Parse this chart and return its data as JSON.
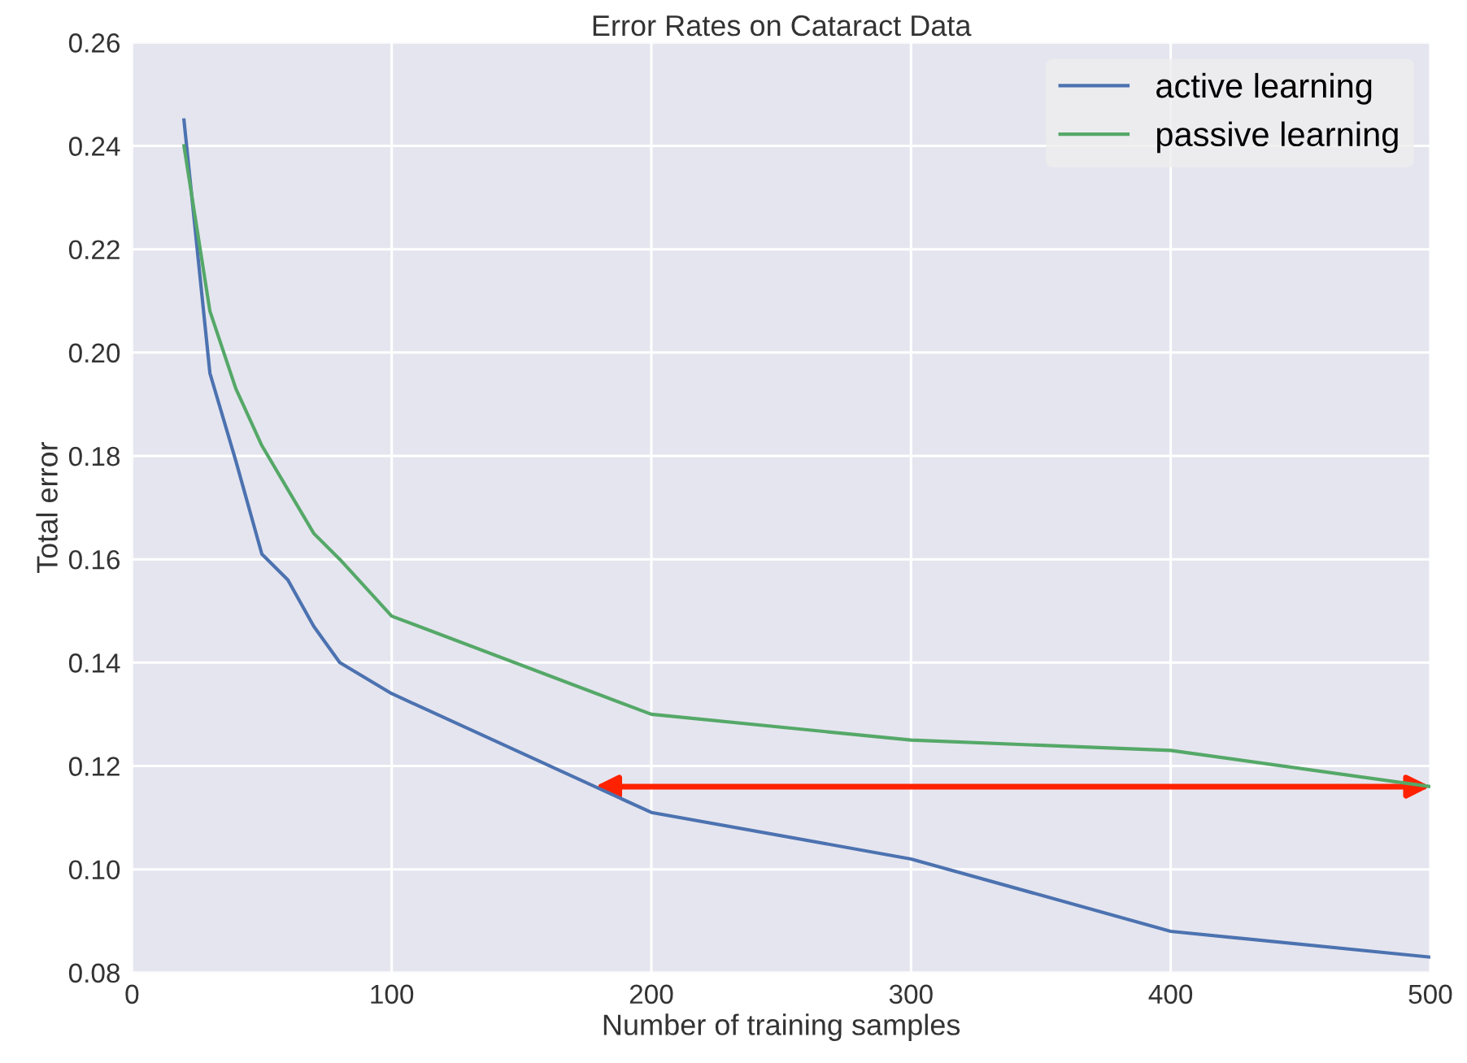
{
  "chart_data": {
    "type": "line",
    "title": "Error Rates on Cataract Data",
    "xlabel": "Number of training samples",
    "ylabel": "Total error",
    "series": [
      {
        "name": "active learning",
        "color": "#4c72b0",
        "x": [
          20,
          30,
          40,
          50,
          60,
          70,
          80,
          100,
          200,
          300,
          400,
          500
        ],
        "values": [
          0.245,
          0.196,
          0.179,
          0.161,
          0.156,
          0.147,
          0.14,
          0.134,
          0.111,
          0.102,
          0.088,
          0.083
        ]
      },
      {
        "name": "passive learning",
        "color": "#55a868",
        "x": [
          20,
          30,
          40,
          50,
          70,
          80,
          100,
          200,
          300,
          400,
          500
        ],
        "values": [
          0.24,
          0.208,
          0.193,
          0.182,
          0.165,
          0.16,
          0.149,
          0.13,
          0.125,
          0.123,
          0.116
        ]
      }
    ],
    "xlim": [
      0,
      500
    ],
    "xticks": [
      0,
      100,
      200,
      300,
      400,
      500
    ],
    "ylim": [
      0.08,
      0.26
    ],
    "yticks": [
      {
        "value": 0.08,
        "label": "0.08"
      },
      {
        "value": 0.1,
        "label": "0.10"
      },
      {
        "value": 0.12,
        "label": "0.12"
      },
      {
        "value": 0.14,
        "label": "0.14"
      },
      {
        "value": 0.16,
        "label": "0.16"
      },
      {
        "value": 0.18,
        "label": "0.18"
      },
      {
        "value": 0.2,
        "label": "0.20"
      },
      {
        "value": 0.22,
        "label": "0.22"
      },
      {
        "value": 0.24,
        "label": "0.24"
      },
      {
        "value": 0.26,
        "label": "0.26"
      }
    ],
    "grid": true,
    "legend": "top right",
    "marker": "none",
    "line_style": "solid"
  }
}
